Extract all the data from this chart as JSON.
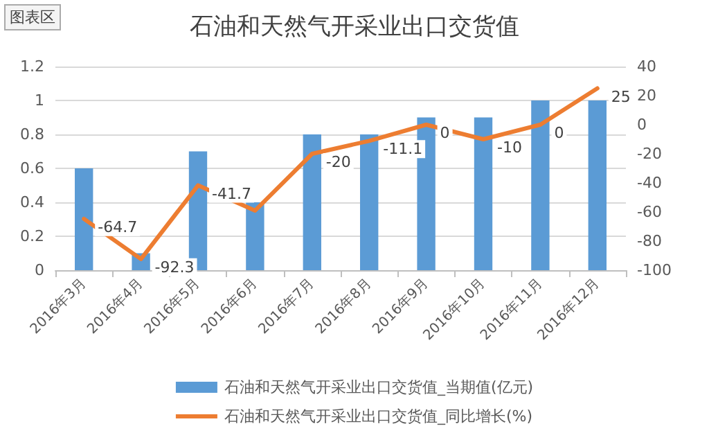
{
  "chart_data": {
    "type": "bar",
    "title": "石油和天然气开采业出口交货值",
    "categories": [
      "2016年3月",
      "2016年4月",
      "2016年5月",
      "2016年6月",
      "2016年7月",
      "2016年8月",
      "2016年9月",
      "2016年10月",
      "2016年11月",
      "2016年12月"
    ],
    "series": [
      {
        "name": "石油和天然气开采业出口交货值_当期值(亿元)",
        "color": "#5b9bd5",
        "values": [
          0.6,
          0.1,
          0.7,
          0.4,
          0.8,
          0.8,
          0.9,
          0.9,
          1.0,
          1.0
        ]
      },
      {
        "name": "石油和天然气开采业出口交货值_同比增长(%)",
        "type": "line",
        "axis": "y2",
        "color": "#ed7d31",
        "values": [
          -64.7,
          -92.3,
          -41.7,
          -59,
          -20,
          -11.1,
          0,
          -10,
          0,
          25
        ],
        "value_labels": [
          "-64.7",
          "-92.3",
          "-41.7",
          null,
          "-20",
          "-11.1",
          "0",
          "-10",
          "0",
          "25"
        ]
      }
    ],
    "ylim": [
      0,
      1.2
    ],
    "yticks": [
      0,
      0.2,
      0.4,
      0.6,
      0.8,
      1,
      1.2
    ],
    "y2lim": [
      -100,
      40
    ],
    "y2ticks": [
      -100,
      -80,
      -60,
      -40,
      -20,
      0,
      20,
      40
    ],
    "grid": "y",
    "legend": "bottom",
    "marker": "none",
    "line_style": "solid",
    "annotations": [
      "图表区"
    ]
  }
}
